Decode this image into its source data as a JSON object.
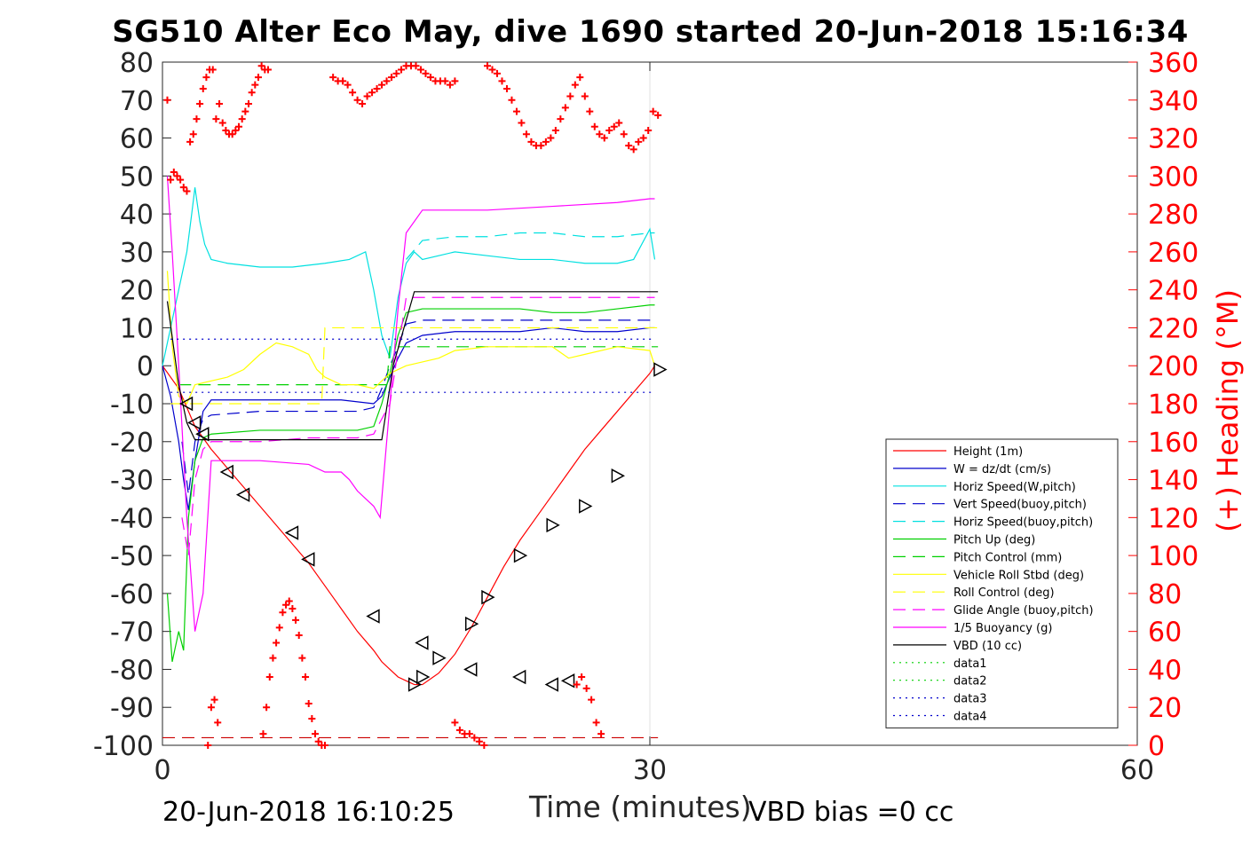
{
  "title": "SG510 Alter Eco May, dive 1690 started 20-Jun-2018 15:16:34",
  "footer_left": "20-Jun-2018 16:10:25",
  "footer_right": "VBD bias =0 cc",
  "chart_data": {
    "type": "line",
    "xlabel": "Time (minutes)",
    "ylabel_left": "",
    "ylabel_right": "(+) Heading (°M)",
    "xlim": [
      0,
      60
    ],
    "ylim": [
      -100,
      80
    ],
    "y2lim": [
      0,
      360
    ],
    "xticks": [
      "0",
      "30",
      "60"
    ],
    "yticks": [
      "80",
      "70",
      "60",
      "50",
      "40",
      "30",
      "20",
      "10",
      "0",
      "-10",
      "-20",
      "-30",
      "-40",
      "-50",
      "-60",
      "-70",
      "-80",
      "-90",
      "-100"
    ],
    "y2ticks": [
      "360",
      "340",
      "320",
      "300",
      "280",
      "260",
      "240",
      "220",
      "200",
      "180",
      "160",
      "140",
      "120",
      "100",
      "80",
      "60",
      "40",
      "20",
      "0"
    ],
    "grid": "x-only",
    "legend_position": "lower-right",
    "series": [
      {
        "name": "Height (1m)",
        "color": "#ff0000",
        "style": "solid",
        "x": [
          0,
          1,
          1.5,
          2,
          2.5,
          3,
          4,
          5,
          6,
          7,
          8,
          9,
          10,
          11,
          12,
          13,
          13.5,
          14,
          14.5,
          15,
          15.5,
          16,
          17,
          18,
          19,
          20,
          21,
          22,
          23,
          24,
          25,
          26,
          27,
          28,
          29,
          30,
          30.3
        ],
        "y": [
          0,
          -6,
          -11,
          -16,
          -19,
          -22,
          -27,
          -32,
          -37,
          -42,
          -47,
          -52,
          -58,
          -64,
          -70,
          -75,
          -78,
          -80,
          -82,
          -83,
          -84,
          -84,
          -81,
          -76,
          -69,
          -61,
          -53,
          -46,
          -40,
          -34,
          -28,
          -22,
          -17,
          -12,
          -7,
          -2,
          0
        ]
      },
      {
        "name": "W = dz/dt (cm/s)",
        "color": "#0000cc",
        "style": "solid",
        "x": [
          0,
          0.5,
          1,
          1.3,
          1.6,
          2,
          2.5,
          3,
          5,
          8,
          11,
          13,
          13.5,
          14,
          14.5,
          15,
          16,
          18,
          20,
          22,
          24,
          26,
          28,
          30,
          30.3
        ],
        "y": [
          0,
          -8,
          -20,
          -30,
          -38,
          -25,
          -12,
          -9,
          -9,
          -9,
          -9,
          -10,
          -8,
          -3,
          2,
          6,
          8,
          9,
          9,
          9,
          10,
          9,
          9,
          10,
          10
        ]
      },
      {
        "name": "Horiz Speed(W,pitch)",
        "color": "#00e0e0",
        "style": "solid",
        "x": [
          0,
          0.5,
          1,
          1.5,
          1.8,
          2,
          2.3,
          2.6,
          3,
          4,
          6,
          8,
          10,
          11.5,
          12.5,
          13,
          13.5,
          14,
          14.5,
          15,
          15.5,
          16,
          17,
          18,
          20,
          22,
          24,
          26,
          28,
          29,
          30,
          30.3
        ],
        "y": [
          0,
          10,
          20,
          30,
          40,
          47,
          38,
          32,
          28,
          27,
          26,
          26,
          27,
          28,
          30,
          20,
          8,
          2,
          18,
          27,
          30,
          28,
          29,
          30,
          29,
          28,
          28,
          27,
          27,
          28,
          36,
          28
        ]
      },
      {
        "name": "Vert Speed(buoy,pitch)",
        "color": "#0000cc",
        "style": "dash",
        "x": [
          1.2,
          1.6,
          2,
          2.5,
          3,
          6,
          9,
          12,
          13,
          13.5,
          14,
          14.5,
          15,
          16,
          20,
          24,
          28,
          30,
          30.3
        ],
        "y": [
          -20,
          -34,
          -20,
          -14,
          -13,
          -12,
          -12,
          -12,
          -11,
          -6,
          0,
          5,
          11,
          12,
          12,
          12,
          12,
          12,
          12
        ]
      },
      {
        "name": "Horiz Speed(buoy,pitch)",
        "color": "#00e0e0",
        "style": "dash",
        "x": [
          15,
          16,
          18,
          20,
          22,
          24,
          26,
          28,
          30,
          30.3
        ],
        "y": [
          28,
          33,
          34,
          34,
          35,
          35,
          34,
          34,
          35,
          35
        ]
      },
      {
        "name": "Pitch Up (deg)",
        "color": "#00d000",
        "style": "solid",
        "x": [
          0.3,
          0.6,
          1,
          1.3,
          1.6,
          2,
          2.5,
          3,
          6,
          9,
          12,
          13,
          13.5,
          14,
          14.5,
          15,
          16,
          18,
          20,
          22,
          24,
          26,
          28,
          30,
          30.3
        ],
        "y": [
          -60,
          -78,
          -70,
          -75,
          -40,
          -25,
          -19,
          -18,
          -17,
          -17,
          -17,
          -16,
          -10,
          -2,
          8,
          14,
          15,
          15,
          15,
          15,
          14,
          14,
          15,
          16,
          16
        ]
      },
      {
        "name": "Pitch Control (mm)",
        "color": "#00d000",
        "style": "dash",
        "x": [
          1,
          2,
          13.8,
          14,
          16,
          30,
          30.5
        ],
        "y": [
          -5,
          -5,
          -5,
          5,
          5,
          5,
          5
        ]
      },
      {
        "name": "Vehicle Roll Stbd (deg)",
        "color": "#ffff00",
        "style": "solid",
        "x": [
          0.3,
          0.6,
          1,
          1.5,
          2,
          3,
          4,
          5,
          6,
          7,
          8,
          8.5,
          9,
          9.5,
          10,
          11,
          12,
          13,
          13.5,
          14,
          15,
          16,
          17,
          18,
          20,
          22,
          24,
          25,
          26,
          28,
          30,
          30.3
        ],
        "y": [
          25,
          5,
          -8,
          -10,
          -5,
          -4,
          -3,
          -1,
          3,
          6,
          5,
          4,
          3,
          -1,
          -3,
          -5,
          -5,
          -6,
          -4,
          -2,
          0,
          1,
          2,
          4,
          5,
          5,
          5,
          2,
          3,
          5,
          4,
          0
        ]
      },
      {
        "name": "Roll Control (deg)",
        "color": "#ffff00",
        "style": "dash",
        "x": [
          0.5,
          9.8,
          10,
          30.5
        ],
        "y": [
          -10,
          -10,
          10,
          10
        ]
      },
      {
        "name": "Glide Angle (buoy,pitch)",
        "color": "#ff00ff",
        "style": "dash",
        "x": [
          1.2,
          1.6,
          2,
          2.5,
          3,
          6,
          9,
          12,
          13,
          14,
          15,
          16,
          18,
          20,
          22,
          24,
          26,
          28,
          30,
          30.3
        ],
        "y": [
          -40,
          -50,
          -30,
          -22,
          -20,
          -20,
          -19,
          -19,
          -18,
          -10,
          18,
          18,
          18,
          18,
          18,
          18,
          18,
          18,
          18,
          18
        ]
      },
      {
        "name": "1/5 Buoyancy (g)",
        "color": "#ff00ff",
        "style": "solid",
        "x": [
          0.3,
          0.6,
          1,
          1.5,
          2,
          2.5,
          3,
          6,
          9,
          10,
          11,
          11.5,
          12,
          13,
          13.4,
          13.8,
          14,
          14.5,
          15,
          16,
          20,
          24,
          28,
          30,
          30.3
        ],
        "y": [
          50,
          30,
          0,
          -40,
          -70,
          -60,
          -25,
          -25,
          -26,
          -28,
          -28,
          -30,
          -33,
          -37,
          -40,
          -20,
          -10,
          15,
          35,
          41,
          41,
          42,
          43,
          44,
          44
        ]
      },
      {
        "name": "VBD (10 cc)",
        "color": "#000000",
        "style": "solid",
        "x": [
          0.3,
          1,
          1.5,
          2,
          13.5,
          14.2,
          15.5,
          30.5
        ],
        "y": [
          17,
          -5,
          -15,
          -19.5,
          -19.5,
          0,
          19.5,
          19.5
        ]
      },
      {
        "name": "data1",
        "color": "#00d000",
        "style": "dot",
        "x": [],
        "y": []
      },
      {
        "name": "data2",
        "color": "#00d000",
        "style": "dot",
        "x": [],
        "y": []
      },
      {
        "name": "data3",
        "color": "#0000cc",
        "style": "dot",
        "x": [
          0.5,
          30.3
        ],
        "y": [
          -7,
          -7
        ]
      },
      {
        "name": "data4",
        "color": "#0000cc",
        "style": "dot",
        "x": [
          0.5,
          30.3
        ],
        "y": [
          7,
          7
        ]
      }
    ],
    "extra_lines": [
      {
        "color": "#cc0000",
        "style": "dash",
        "x": [
          0,
          30.5
        ],
        "y": [
          -98,
          -98
        ]
      }
    ],
    "triangle_markers": {
      "left": {
        "x": [
          1.5,
          2,
          2.5,
          4,
          5,
          8,
          9,
          13,
          16,
          19,
          22,
          24,
          25
        ],
        "y": [
          -10,
          -15,
          -18,
          -28,
          -34,
          -44,
          -51,
          -66,
          -73,
          -80,
          -82,
          -84,
          -83
        ]
      },
      "right": {
        "x": [
          15.5,
          16,
          17,
          19,
          20,
          22,
          24,
          26,
          28,
          30.6
        ],
        "y": [
          -84,
          -82,
          -77,
          -68,
          -61,
          -50,
          -42,
          -37,
          -29,
          -1
        ]
      }
    },
    "heading_points": {
      "color": "#ff0000",
      "x": [
        0.3,
        0.5,
        0.7,
        0.9,
        1.1,
        1.3,
        1.5,
        1.7,
        1.9,
        2.1,
        2.3,
        2.5,
        2.7,
        2.9,
        3.1,
        3.3,
        3.5,
        3.7,
        3.9,
        4.1,
        4.3,
        4.5,
        4.7,
        4.9,
        5.1,
        5.3,
        5.5,
        5.7,
        5.9,
        6.1,
        6.3,
        6.5,
        10.5,
        10.8,
        11.1,
        11.4,
        11.7,
        12,
        12.3,
        12.6,
        12.9,
        13.2,
        13.5,
        13.8,
        14.1,
        14.4,
        14.7,
        15,
        15.3,
        15.6,
        15.9,
        16.2,
        16.5,
        16.8,
        17.1,
        17.4,
        17.7,
        18,
        20,
        20.3,
        20.6,
        20.9,
        21.2,
        21.5,
        21.8,
        22.1,
        22.4,
        22.7,
        23,
        23.3,
        23.6,
        23.9,
        24.2,
        24.5,
        24.8,
        25.1,
        25.4,
        25.7,
        26,
        26.3,
        26.6,
        26.9,
        27.2,
        27.5,
        27.8,
        28.1,
        28.4,
        28.7,
        29,
        29.3,
        29.6,
        29.9,
        30.2,
        30.5,
        2.8,
        3.0,
        3.2,
        3.4,
        6.2,
        6.4,
        6.6,
        6.8,
        7.0,
        7.2,
        7.4,
        7.6,
        7.8,
        8.0,
        8.2,
        8.4,
        8.6,
        8.8,
        9.0,
        9.2,
        9.4,
        9.6,
        9.8,
        10.0,
        18,
        18.3,
        18.6,
        18.9,
        19.2,
        19.5,
        19.8,
        25.5,
        25.8,
        26.1,
        26.4,
        26.7,
        27.0
      ],
      "heading": [
        340,
        298,
        302,
        300,
        298,
        294,
        292,
        318,
        322,
        330,
        338,
        346,
        352,
        356,
        356,
        330,
        338,
        328,
        324,
        322,
        322,
        324,
        326,
        330,
        334,
        338,
        344,
        348,
        352,
        358,
        356,
        356,
        352,
        350,
        350,
        348,
        344,
        340,
        338,
        342,
        344,
        346,
        348,
        350,
        352,
        354,
        356,
        358,
        358,
        358,
        356,
        354,
        352,
        350,
        350,
        350,
        348,
        350,
        358,
        356,
        354,
        350,
        346,
        340,
        334,
        328,
        322,
        318,
        316,
        316,
        318,
        320,
        324,
        330,
        336,
        342,
        348,
        352,
        342,
        334,
        326,
        322,
        320,
        324,
        326,
        328,
        322,
        316,
        314,
        318,
        320,
        324,
        334,
        332,
        0,
        20,
        24,
        12,
        6,
        20,
        36,
        46,
        54,
        62,
        70,
        74,
        76,
        72,
        66,
        58,
        46,
        36,
        22,
        14,
        6,
        2,
        0,
        0,
        12,
        8,
        6,
        6,
        4,
        2,
        0,
        32,
        36,
        30,
        24,
        12,
        6
      ]
    }
  }
}
